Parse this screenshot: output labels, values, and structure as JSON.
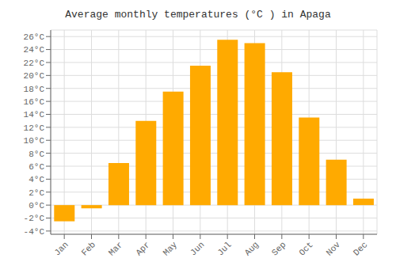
{
  "chart_data": {
    "type": "bar",
    "title": "Average monthly temperatures (°C ) in Apaga",
    "categories": [
      "Jan",
      "Feb",
      "Mar",
      "Apr",
      "May",
      "Jun",
      "Jul",
      "Aug",
      "Sep",
      "Oct",
      "Nov",
      "Dec"
    ],
    "values": [
      -2.5,
      -0.5,
      6.5,
      13.0,
      17.5,
      21.5,
      25.5,
      25.0,
      20.5,
      13.5,
      7.0,
      1.0
    ],
    "color": "#FFAA00",
    "ylim": [
      -4.5,
      27
    ],
    "yticks": [
      {
        "value": -4,
        "label": "-4°C"
      },
      {
        "value": -2,
        "label": "-2°C"
      },
      {
        "value": 0,
        "label": "0°C"
      },
      {
        "value": 2,
        "label": "2°C"
      },
      {
        "value": 4,
        "label": "4°C"
      },
      {
        "value": 6,
        "label": "6°C"
      },
      {
        "value": 8,
        "label": "8°C"
      },
      {
        "value": 10,
        "label": "10°C"
      },
      {
        "value": 12,
        "label": "12°C"
      },
      {
        "value": 14,
        "label": "14°C"
      },
      {
        "value": 16,
        "label": "16°C"
      },
      {
        "value": 18,
        "label": "18°C"
      },
      {
        "value": 20,
        "label": "20°C"
      },
      {
        "value": 22,
        "label": "22°C"
      },
      {
        "value": 24,
        "label": "24°C"
      },
      {
        "value": 26,
        "label": "26°C"
      }
    ],
    "grid": true
  }
}
